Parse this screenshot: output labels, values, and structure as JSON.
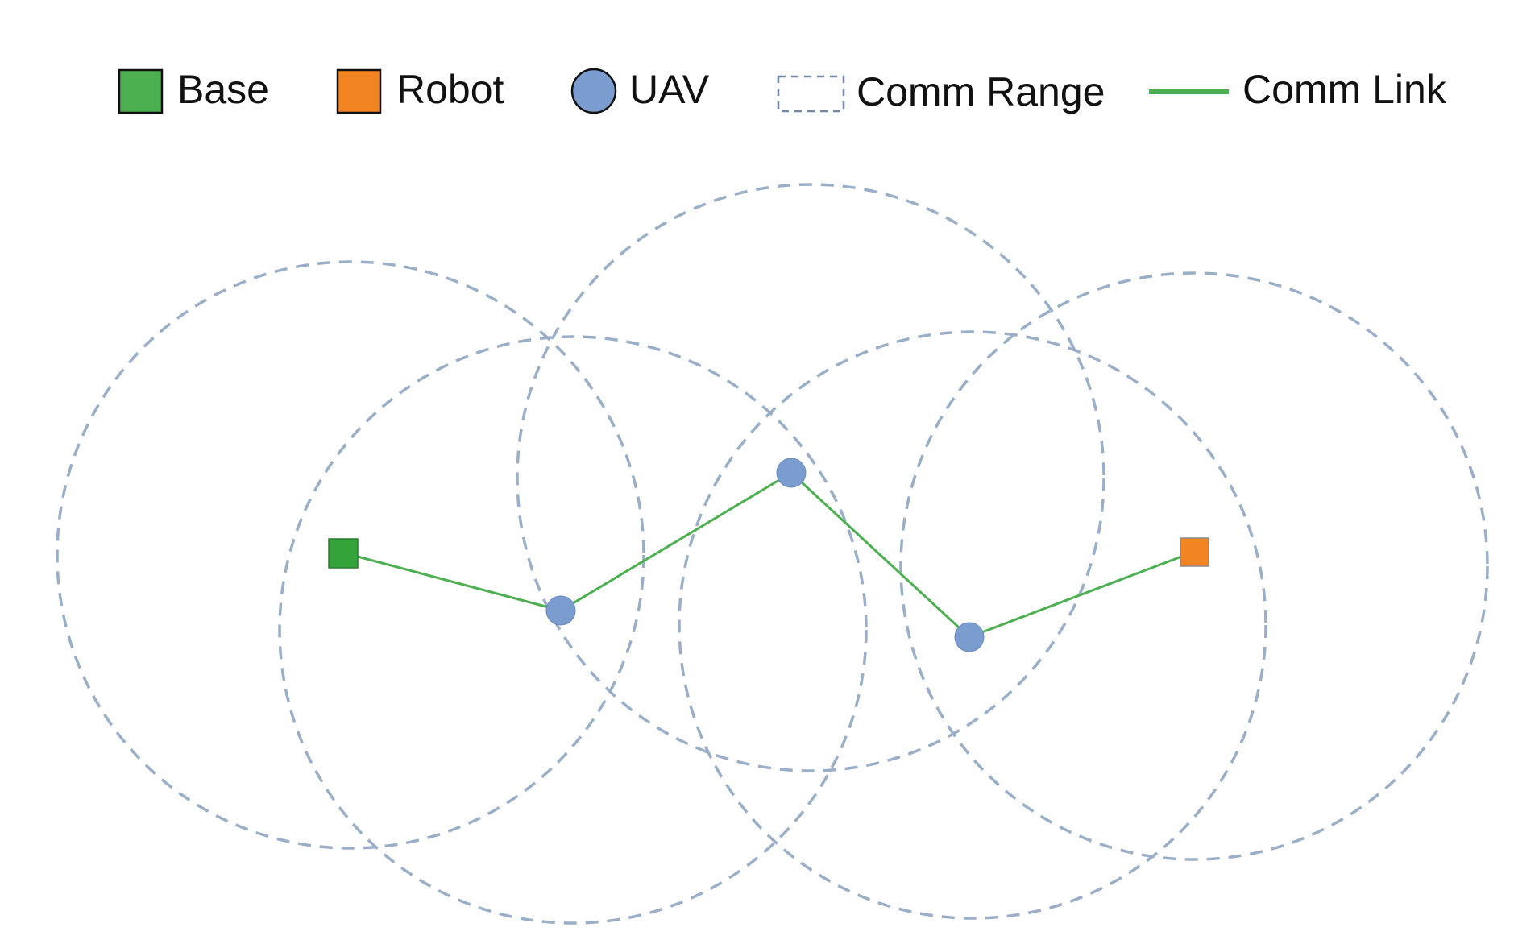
{
  "legend": {
    "items": [
      {
        "key": "base",
        "label": "Base",
        "marker": "square",
        "color": "#4caf50"
      },
      {
        "key": "robot",
        "label": "Robot",
        "marker": "square",
        "color": "#f28522"
      },
      {
        "key": "uav",
        "label": "UAV",
        "marker": "circle",
        "color": "#7b9ccf"
      },
      {
        "key": "comm_range",
        "label": "Comm Range",
        "marker": "dashed-box",
        "color": "#9aaec8"
      },
      {
        "key": "comm_link",
        "label": "Comm Link",
        "marker": "line",
        "color": "#4caf50"
      }
    ]
  },
  "nodes": [
    {
      "id": "base",
      "type": "Base"
    },
    {
      "id": "uav-1",
      "type": "UAV"
    },
    {
      "id": "uav-2",
      "type": "UAV"
    },
    {
      "id": "uav-3",
      "type": "UAV"
    },
    {
      "id": "robot",
      "type": "Robot"
    }
  ],
  "comm_links": [
    [
      "base",
      "uav-1"
    ],
    [
      "uav-1",
      "uav-2"
    ],
    [
      "uav-2",
      "uav-3"
    ],
    [
      "uav-3",
      "robot"
    ]
  ],
  "comm_range_circles": [
    "base",
    "uav-1",
    "uav-2",
    "uav-3",
    "robot"
  ],
  "colors": {
    "base_fill": "#33a33a",
    "robot_fill": "#f28522",
    "uav_fill": "#7b9ccf",
    "range_stroke": "#9aaec8",
    "link_stroke": "#4caf50"
  }
}
